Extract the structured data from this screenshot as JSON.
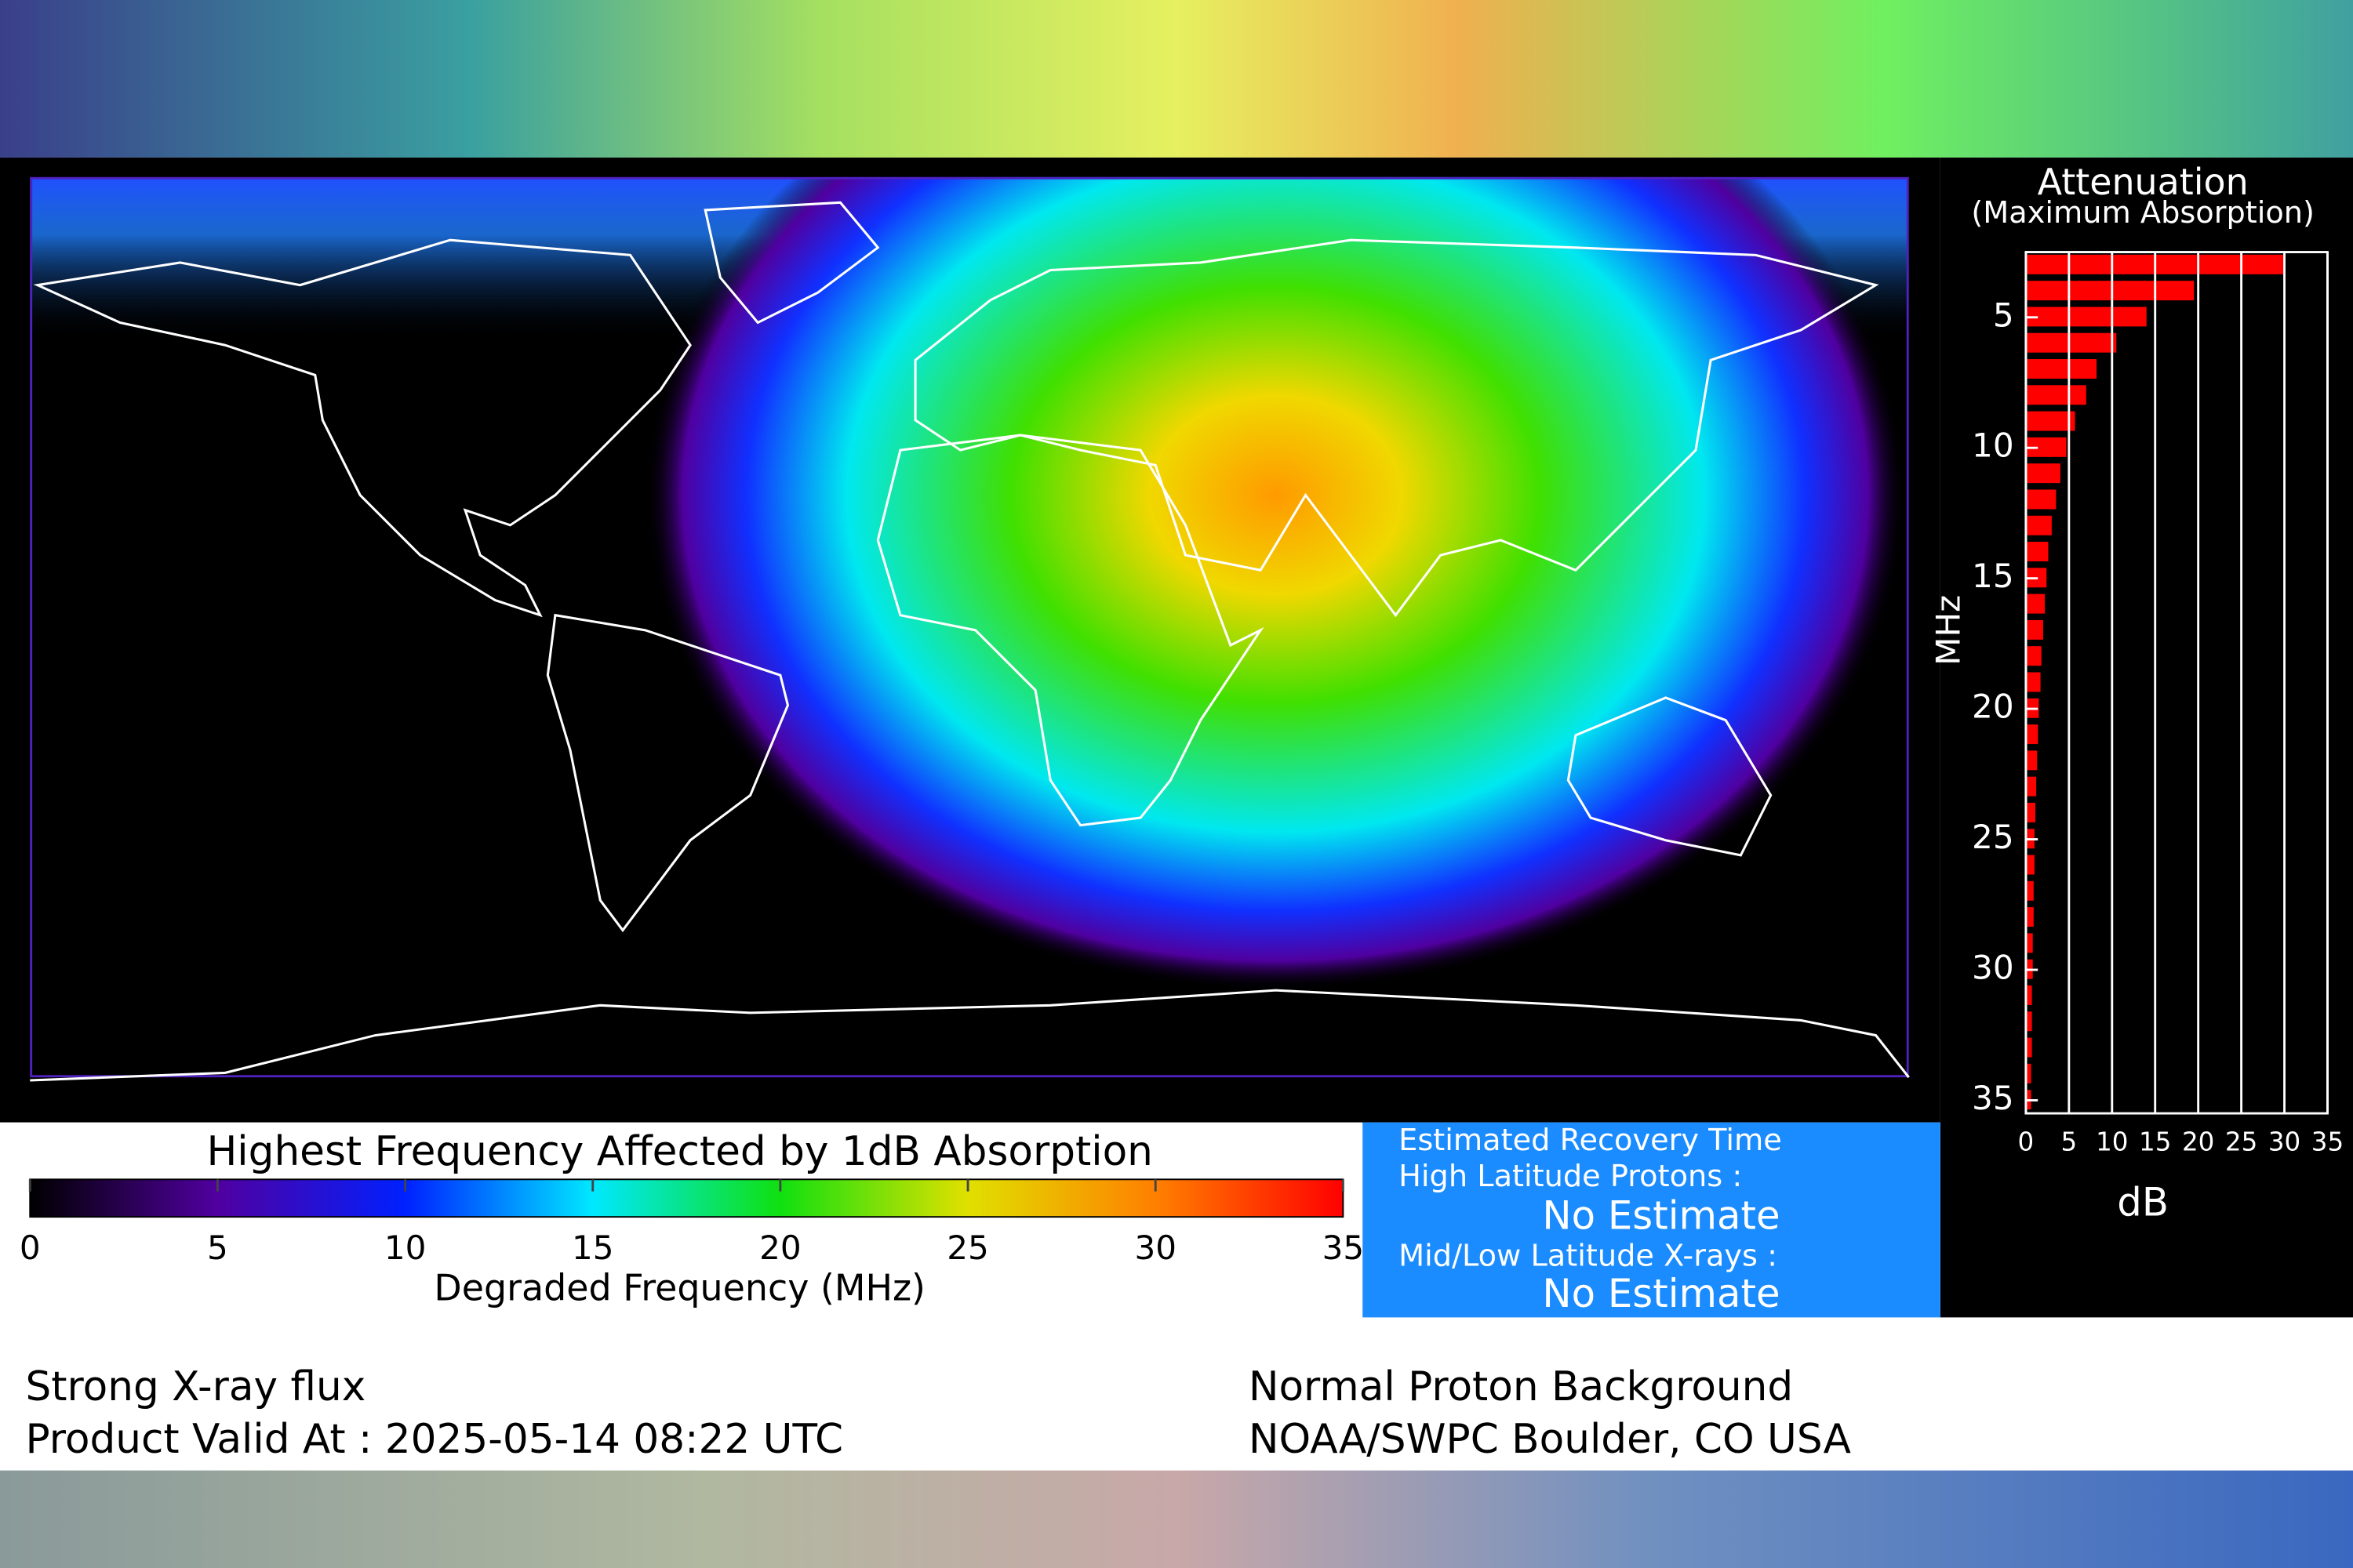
{
  "chart_data": [
    {
      "type": "bar",
      "orientation": "horizontal",
      "title": "Attenuation",
      "subtitle": "(Maximum Absorption)",
      "y_label": "MHz",
      "x_label": "dB",
      "x": [
        3,
        4,
        5,
        6,
        7,
        8,
        9,
        10,
        11,
        12,
        13,
        14,
        15,
        16,
        17,
        18,
        19,
        20,
        21,
        22,
        23,
        24,
        25,
        26,
        27,
        28,
        29,
        30,
        31,
        32,
        33,
        34,
        35
      ],
      "values": [
        30,
        19.5,
        14,
        10.5,
        8.2,
        7,
        5.7,
        4.7,
        4,
        3.5,
        3,
        2.6,
        2.4,
        2.2,
        2,
        1.8,
        1.7,
        1.5,
        1.4,
        1.3,
        1.2,
        1.1,
        1,
        1,
        0.9,
        0.9,
        0.8,
        0.8,
        0.7,
        0.7,
        0.7,
        0.6,
        0.6
      ],
      "color": "#ff0000",
      "xlim": [
        0,
        35
      ],
      "xticks": [
        0,
        5,
        10,
        15,
        20,
        25,
        30,
        35
      ],
      "ylim": [
        2.5,
        35.5
      ],
      "yticks": [
        5,
        10,
        15,
        20,
        25,
        30,
        35
      ],
      "y_reversed": true,
      "grid": true
    },
    {
      "type": "colorbar",
      "title": "Highest Frequency Affected by 1dB Absorption",
      "x_label": "Degraded Frequency (MHz)",
      "xlim": [
        0,
        35
      ],
      "xticks": [
        0,
        5,
        10,
        15,
        20,
        25,
        30,
        35
      ],
      "colors": [
        "#000000",
        "#5000a0",
        "#0020ff",
        "#00e8ff",
        "#10e010",
        "#e0e000",
        "#ff8000",
        "#ff0000"
      ]
    }
  ],
  "recovery": {
    "title": "Estimated Recovery Time",
    "items": [
      {
        "label": "High Latitude Protons :",
        "value": "No Estimate"
      },
      {
        "label": "Mid/Low Latitude X-rays :",
        "value": "No Estimate"
      }
    ]
  },
  "footer": {
    "left": [
      "Strong X-ray flux",
      "Product Valid At : 2025-05-14 08:22 UTC"
    ],
    "right": [
      "Normal Proton Background",
      "NOAA/SWPC Boulder, CO USA"
    ]
  }
}
